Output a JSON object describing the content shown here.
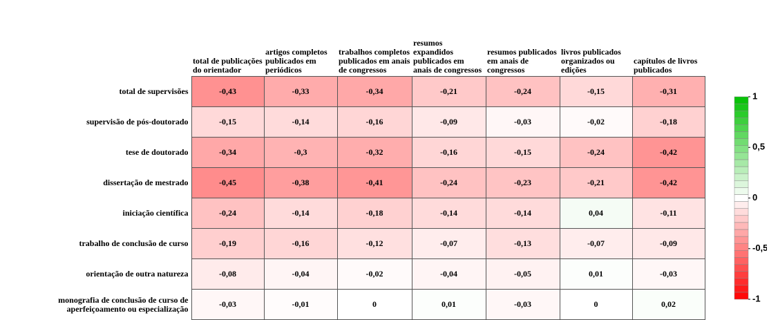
{
  "chart_data": {
    "type": "heatmap",
    "x": [
      "total de publicações do orientador",
      "artigos completos publicados em periódicos",
      "trabalhos completos publicados em anais de congressos",
      "resumos expandidos publicados em anais de congressos",
      "resumos publicados em anais de congressos",
      "livros publicados organizados ou edições",
      "capítulos de livros publicados"
    ],
    "y": [
      "total de supervisões",
      "supervisão de pós-doutorado",
      "tese de doutorado",
      "dissertação de mestrado",
      "iniciação científica",
      "trabalho de conclusão de curso",
      "orientação de outra natureza",
      "monografia de conclusão de curso de aperfeiçoamento ou especialização"
    ],
    "values": [
      [
        -0.43,
        -0.33,
        -0.34,
        -0.21,
        -0.24,
        -0.15,
        -0.31
      ],
      [
        -0.15,
        -0.14,
        -0.16,
        -0.09,
        -0.03,
        -0.02,
        -0.18
      ],
      [
        -0.34,
        -0.3,
        -0.32,
        -0.16,
        -0.15,
        -0.24,
        -0.42
      ],
      [
        -0.45,
        -0.38,
        -0.41,
        -0.24,
        -0.23,
        -0.21,
        -0.42
      ],
      [
        -0.24,
        -0.14,
        -0.18,
        -0.14,
        -0.14,
        0.04,
        -0.11
      ],
      [
        -0.19,
        -0.16,
        -0.12,
        -0.07,
        -0.13,
        -0.07,
        -0.09
      ],
      [
        -0.08,
        -0.04,
        -0.02,
        -0.04,
        -0.05,
        0.01,
        -0.03
      ],
      [
        -0.03,
        -0.01,
        0,
        0.01,
        -0.03,
        0,
        0.02
      ]
    ],
    "value_labels": [
      [
        "-0,43",
        "-0,33",
        "-0,34",
        "-0,21",
        "-0,24",
        "-0,15",
        "-0,31"
      ],
      [
        "-0,15",
        "-0,14",
        "-0,16",
        "-0,09",
        "-0,03",
        "-0,02",
        "-0,18"
      ],
      [
        "-0,34",
        "-0,3",
        "-0,32",
        "-0,16",
        "-0,15",
        "-0,24",
        "-0,42"
      ],
      [
        "-0,45",
        "-0,38",
        "-0,41",
        "-0,24",
        "-0,23",
        "-0,21",
        "-0,42"
      ],
      [
        "-0,24",
        "-0,14",
        "-0,18",
        "-0,14",
        "-0,14",
        "0,04",
        "-0,11"
      ],
      [
        "-0,19",
        "-0,16",
        "-0,12",
        "-0,07",
        "-0,13",
        "-0,07",
        "-0,09"
      ],
      [
        "-0,08",
        "-0,04",
        "-0,02",
        "-0,04",
        "-0,05",
        "0,01",
        "-0,03"
      ],
      [
        "-0,03",
        "-0,01",
        "0",
        "0,01",
        "-0,03",
        "0",
        "0,02"
      ]
    ],
    "zlim": [
      -1,
      1
    ],
    "zticks": [
      -1,
      {
        "value": -0.5,
        "label": "-0,5"
      },
      0,
      {
        "value": 0.5,
        "label": "0,5"
      },
      1
    ],
    "colormap": [
      "#ff0000",
      "#ffffff",
      "#00c000"
    ]
  }
}
